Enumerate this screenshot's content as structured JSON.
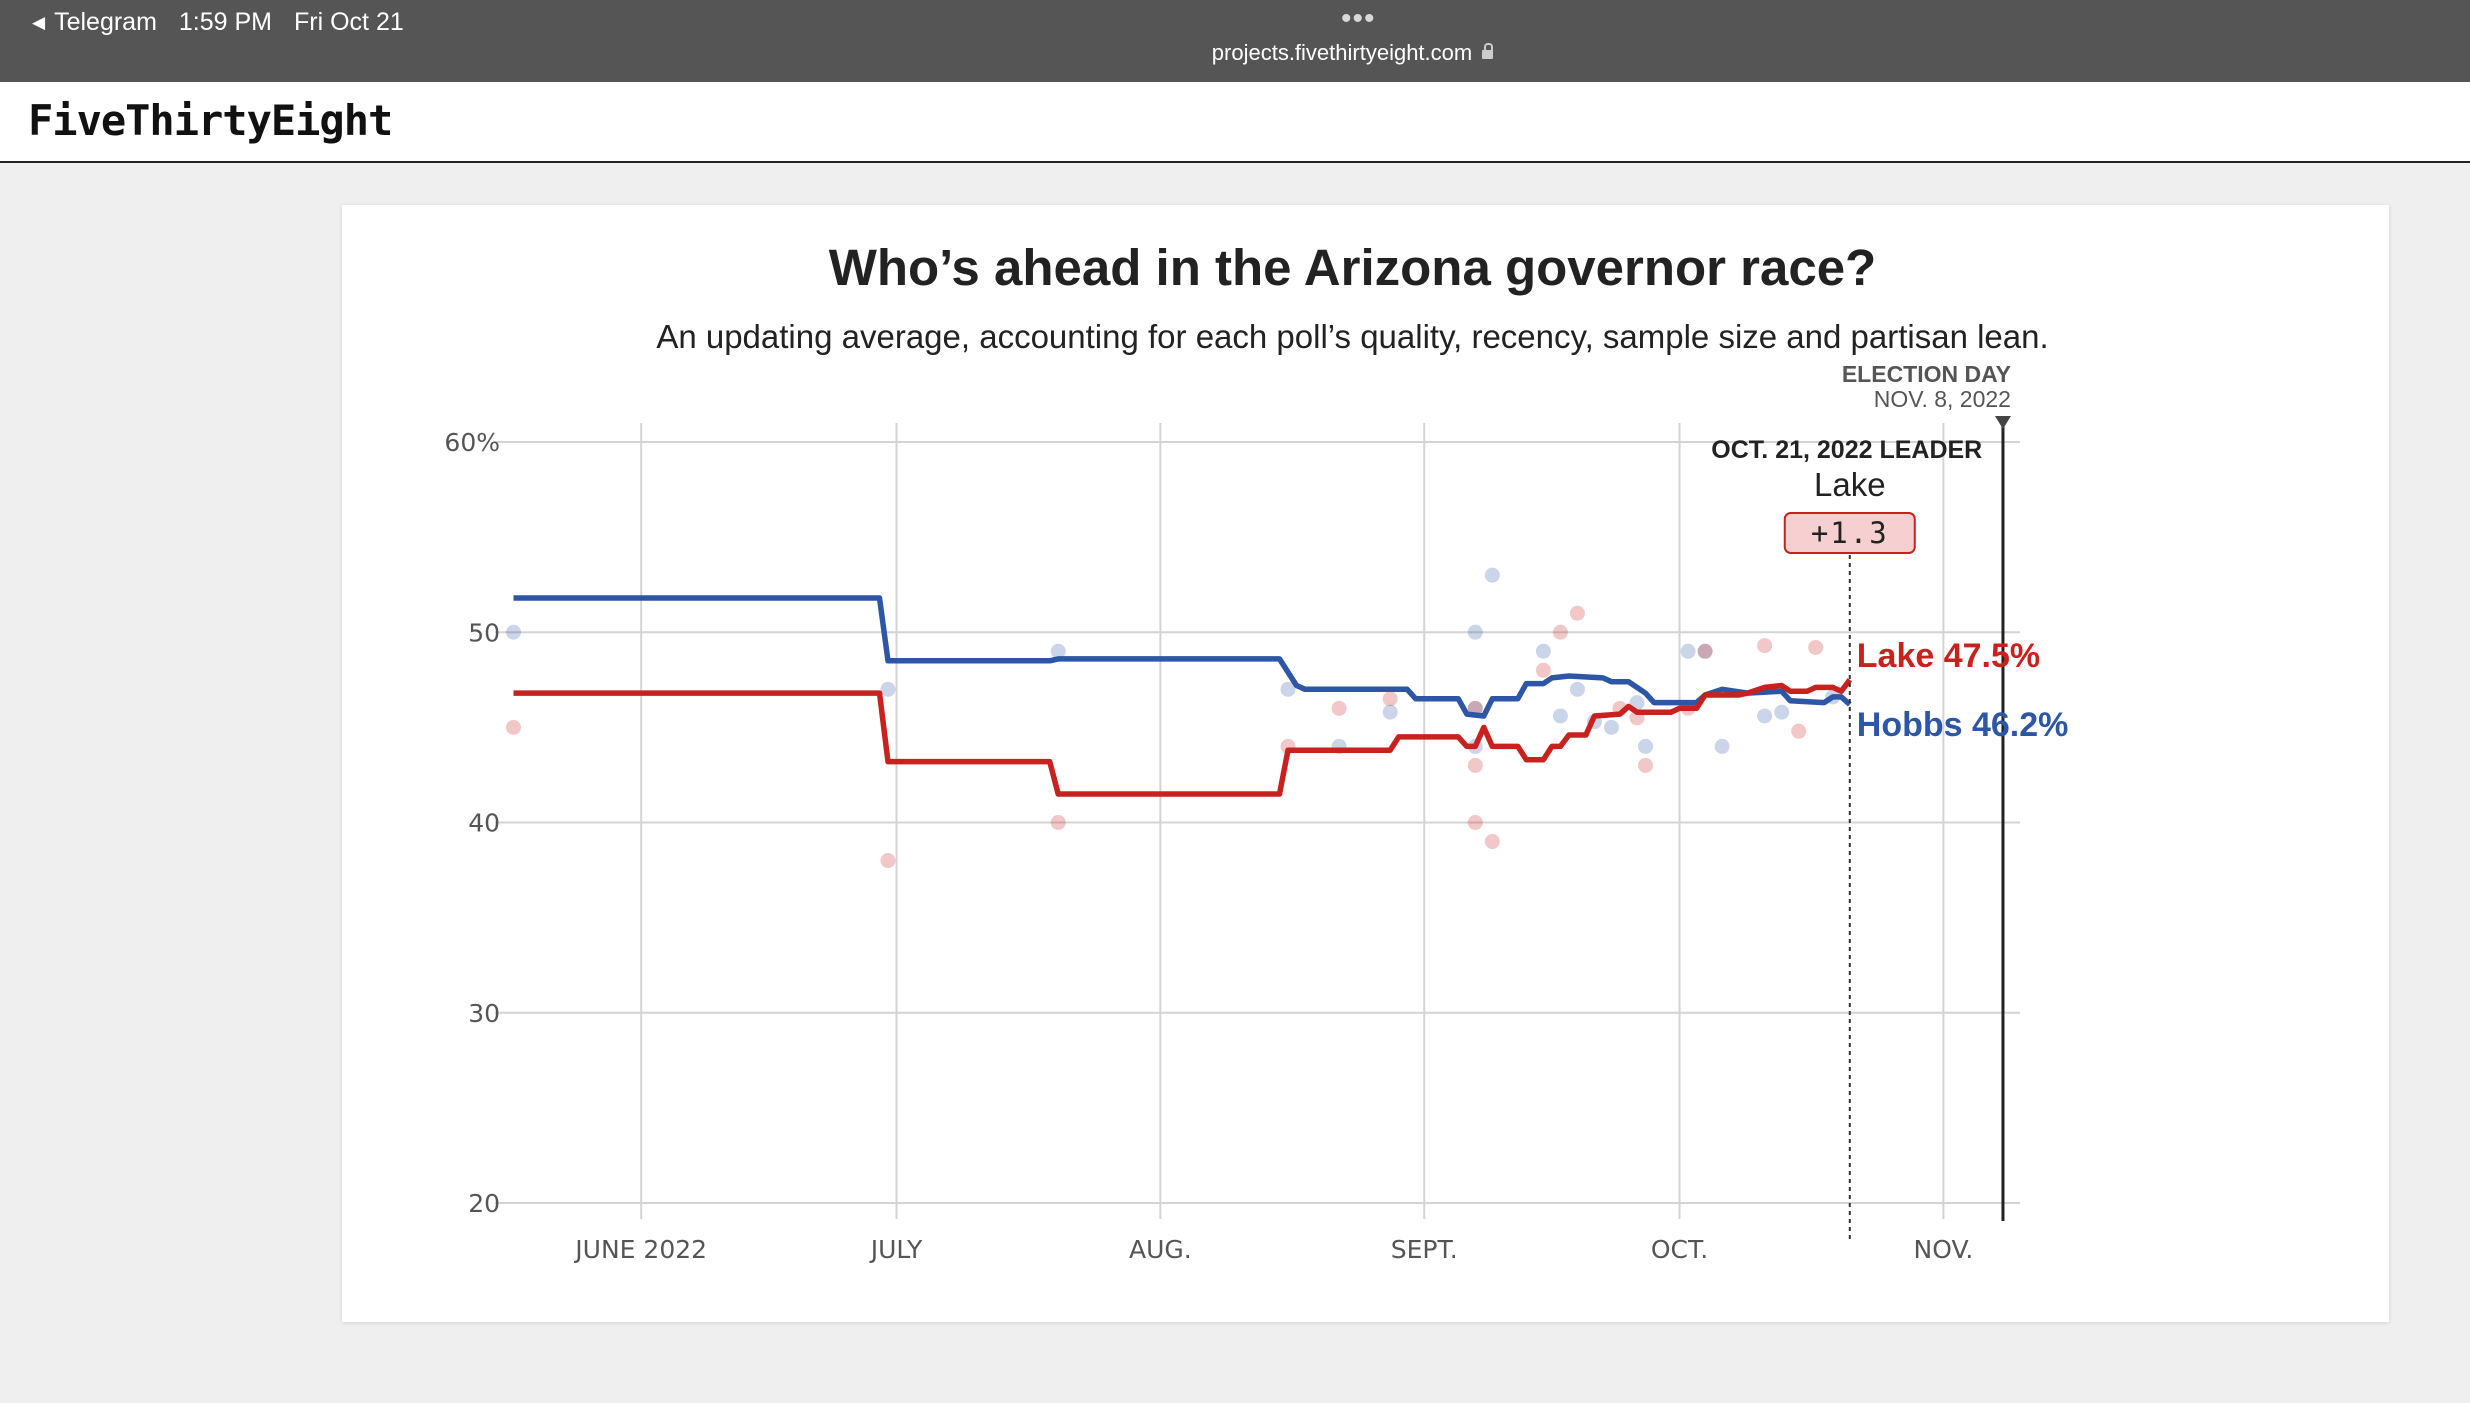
{
  "status_bar": {
    "back_app": "Telegram",
    "time": "1:59 PM",
    "date": "Fri Oct 21",
    "url": "projects.fivethirtyeight.com"
  },
  "site": {
    "logo": "FiveThirtyEight"
  },
  "colors": {
    "lake": "#c8221f",
    "hobbs": "#2d56a6"
  },
  "chart_data": {
    "type": "line",
    "title": "Who’s ahead in the Arizona governor race?",
    "subtitle": "An updating average, accounting for each poll’s quality, recency, sample size and partisan lean.",
    "x_range": [
      "2022-05-16",
      "2022-11-10"
    ],
    "ylim": [
      20,
      60
    ],
    "y_ticks": [
      {
        "value": 60,
        "label": "60%"
      },
      {
        "value": 50,
        "label": "50"
      },
      {
        "value": 40,
        "label": "40"
      },
      {
        "value": 30,
        "label": "30"
      },
      {
        "value": 20,
        "label": "20"
      }
    ],
    "x_ticks": [
      {
        "date": "2022-06-01",
        "label": "JUNE 2022"
      },
      {
        "date": "2022-07-01",
        "label": "JULY"
      },
      {
        "date": "2022-08-01",
        "label": "AUG."
      },
      {
        "date": "2022-09-01",
        "label": "SEPT."
      },
      {
        "date": "2022-10-01",
        "label": "OCT."
      },
      {
        "date": "2022-11-01",
        "label": "NOV."
      }
    ],
    "grid": true,
    "election_day": {
      "date": "2022-11-08",
      "label": "ELECTION DAY",
      "sublabel": "NOV. 8, 2022"
    },
    "leader": {
      "date": "2022-10-21",
      "header": "OCT. 21, 2022 LEADER",
      "name": "Lake",
      "margin": "+1.3"
    },
    "series": [
      {
        "name": "Hobbs",
        "end_label": "Hobbs 46.2%",
        "color": "#2d56a6",
        "line": [
          [
            "2022-05-17",
            51.8
          ],
          [
            "2022-06-29",
            51.8
          ],
          [
            "2022-06-30",
            48.5
          ],
          [
            "2022-07-19",
            48.5
          ],
          [
            "2022-07-20",
            48.6
          ],
          [
            "2022-08-15",
            48.6
          ],
          [
            "2022-08-17",
            47.2
          ],
          [
            "2022-08-18",
            47.0
          ],
          [
            "2022-08-30",
            47.0
          ],
          [
            "2022-08-31",
            46.5
          ],
          [
            "2022-09-05",
            46.5
          ],
          [
            "2022-09-06",
            45.7
          ],
          [
            "2022-09-08",
            45.6
          ],
          [
            "2022-09-09",
            46.5
          ],
          [
            "2022-09-12",
            46.5
          ],
          [
            "2022-09-13",
            47.3
          ],
          [
            "2022-09-15",
            47.3
          ],
          [
            "2022-09-16",
            47.6
          ],
          [
            "2022-09-18",
            47.7
          ],
          [
            "2022-09-22",
            47.6
          ],
          [
            "2022-09-23",
            47.4
          ],
          [
            "2022-09-25",
            47.4
          ],
          [
            "2022-09-27",
            46.8
          ],
          [
            "2022-09-28",
            46.3
          ],
          [
            "2022-10-03",
            46.3
          ],
          [
            "2022-10-04",
            46.7
          ],
          [
            "2022-10-06",
            47.0
          ],
          [
            "2022-10-09",
            46.8
          ],
          [
            "2022-10-13",
            46.9
          ],
          [
            "2022-10-14",
            46.4
          ],
          [
            "2022-10-18",
            46.3
          ],
          [
            "2022-10-19",
            46.6
          ],
          [
            "2022-10-20",
            46.6
          ],
          [
            "2022-10-21",
            46.2
          ]
        ],
        "polls": [
          [
            "2022-05-17",
            50.0
          ],
          [
            "2022-06-30",
            47.0
          ],
          [
            "2022-07-20",
            49.0
          ],
          [
            "2022-08-16",
            47.0
          ],
          [
            "2022-08-22",
            44.0
          ],
          [
            "2022-08-28",
            45.8
          ],
          [
            "2022-09-07",
            50.0
          ],
          [
            "2022-09-07",
            46.0
          ],
          [
            "2022-09-07",
            44.0
          ],
          [
            "2022-09-09",
            53.0
          ],
          [
            "2022-09-15",
            49.0
          ],
          [
            "2022-09-17",
            45.6
          ],
          [
            "2022-09-19",
            47.0
          ],
          [
            "2022-09-21",
            45.3
          ],
          [
            "2022-09-23",
            45.0
          ],
          [
            "2022-09-26",
            46.3
          ],
          [
            "2022-09-27",
            44.0
          ],
          [
            "2022-10-02",
            49.0
          ],
          [
            "2022-10-04",
            49.0
          ],
          [
            "2022-10-06",
            44.0
          ],
          [
            "2022-10-11",
            45.6
          ],
          [
            "2022-10-13",
            45.8
          ],
          [
            "2022-10-19",
            46.6
          ]
        ]
      },
      {
        "name": "Lake",
        "end_label": "Lake 47.5%",
        "color": "#c8221f",
        "line": [
          [
            "2022-05-17",
            46.8
          ],
          [
            "2022-06-29",
            46.8
          ],
          [
            "2022-06-30",
            43.2
          ],
          [
            "2022-07-19",
            43.2
          ],
          [
            "2022-07-20",
            41.5
          ],
          [
            "2022-08-15",
            41.5
          ],
          [
            "2022-08-16",
            43.8
          ],
          [
            "2022-08-28",
            43.8
          ],
          [
            "2022-08-29",
            44.5
          ],
          [
            "2022-09-05",
            44.5
          ],
          [
            "2022-09-06",
            44.0
          ],
          [
            "2022-09-07",
            44.0
          ],
          [
            "2022-09-08",
            45.0
          ],
          [
            "2022-09-09",
            44.0
          ],
          [
            "2022-09-12",
            44.0
          ],
          [
            "2022-09-13",
            43.3
          ],
          [
            "2022-09-15",
            43.3
          ],
          [
            "2022-09-16",
            44.0
          ],
          [
            "2022-09-17",
            44.0
          ],
          [
            "2022-09-18",
            44.6
          ],
          [
            "2022-09-20",
            44.6
          ],
          [
            "2022-09-21",
            45.6
          ],
          [
            "2022-09-24",
            45.7
          ],
          [
            "2022-09-25",
            46.1
          ],
          [
            "2022-09-26",
            45.8
          ],
          [
            "2022-09-30",
            45.8
          ],
          [
            "2022-10-01",
            46.0
          ],
          [
            "2022-10-03",
            46.0
          ],
          [
            "2022-10-04",
            46.7
          ],
          [
            "2022-10-08",
            46.7
          ],
          [
            "2022-10-09",
            46.8
          ],
          [
            "2022-10-11",
            47.1
          ],
          [
            "2022-10-13",
            47.2
          ],
          [
            "2022-10-14",
            46.9
          ],
          [
            "2022-10-16",
            46.9
          ],
          [
            "2022-10-17",
            47.1
          ],
          [
            "2022-10-19",
            47.1
          ],
          [
            "2022-10-20",
            46.9
          ],
          [
            "2022-10-21",
            47.5
          ]
        ],
        "polls": [
          [
            "2022-05-17",
            45.0
          ],
          [
            "2022-06-30",
            38.0
          ],
          [
            "2022-07-20",
            40.0
          ],
          [
            "2022-08-16",
            44.0
          ],
          [
            "2022-08-22",
            46.0
          ],
          [
            "2022-08-28",
            46.5
          ],
          [
            "2022-09-07",
            46.0
          ],
          [
            "2022-09-07",
            43.0
          ],
          [
            "2022-09-07",
            40.0
          ],
          [
            "2022-09-09",
            39.0
          ],
          [
            "2022-09-15",
            48.0
          ],
          [
            "2022-09-17",
            50.0
          ],
          [
            "2022-09-19",
            51.0
          ],
          [
            "2022-09-24",
            46.0
          ],
          [
            "2022-09-26",
            45.5
          ],
          [
            "2022-09-27",
            43.0
          ],
          [
            "2022-10-02",
            46.0
          ],
          [
            "2022-10-04",
            49.0
          ],
          [
            "2022-10-11",
            49.3
          ],
          [
            "2022-10-15",
            44.8
          ],
          [
            "2022-10-17",
            49.2
          ]
        ]
      }
    ]
  }
}
